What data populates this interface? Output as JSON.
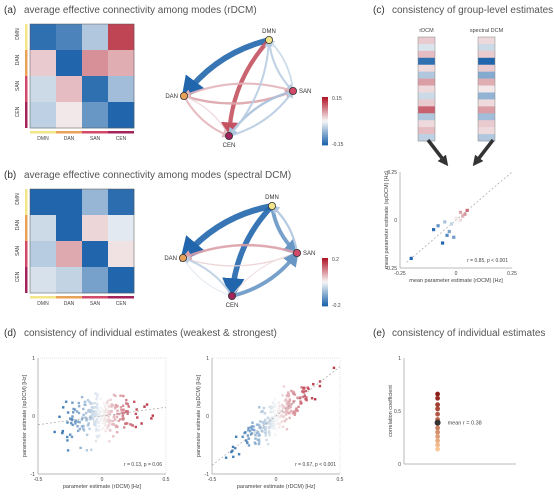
{
  "panels": {
    "a": {
      "letter": "(a)",
      "title": "average effective connectivity among modes (rDCM)"
    },
    "b": {
      "letter": "(b)",
      "title": "average effective connectivity among modes (spectral DCM)"
    },
    "c": {
      "letter": "(c)",
      "title": "consistency of group-level estimates"
    },
    "d": {
      "letter": "(d)",
      "title": "consistency of individual estimates (weakest & strongest)"
    },
    "e": {
      "letter": "(e)",
      "title": "consistency of individual estimates"
    }
  },
  "colors": {
    "red": "#b2182b",
    "blue": "#2166ac",
    "white": "#f7f7f7"
  },
  "chart_data": [
    {
      "id": "a_matrix",
      "type": "heatmap",
      "rows": [
        "DMN",
        "DAN",
        "SAN",
        "CEN"
      ],
      "cols": [
        "DMN",
        "DAN",
        "SAN",
        "CEN"
      ],
      "values": [
        [
          -0.14,
          -0.12,
          -0.05,
          0.12
        ],
        [
          0.03,
          -0.15,
          0.07,
          0.05
        ],
        [
          -0.03,
          0.04,
          -0.14,
          -0.06
        ],
        [
          -0.04,
          0.01,
          -0.1,
          -0.15
        ]
      ],
      "clim": [
        -0.15,
        0.15
      ]
    },
    {
      "id": "a_network",
      "type": "network",
      "nodes": [
        "DMN",
        "DAN",
        "SAN",
        "CEN"
      ],
      "edges": [
        {
          "from": "DMN",
          "to": "DAN",
          "weight": -0.14
        },
        {
          "from": "DMN",
          "to": "SAN",
          "weight": -0.04
        },
        {
          "from": "DMN",
          "to": "CEN",
          "weight": 0.1
        },
        {
          "from": "DAN",
          "to": "SAN",
          "weight": 0.05
        },
        {
          "from": "DAN",
          "to": "CEN",
          "weight": 0.04
        },
        {
          "from": "SAN",
          "to": "DAN",
          "weight": 0.04
        },
        {
          "from": "SAN",
          "to": "CEN",
          "weight": -0.05
        },
        {
          "from": "CEN",
          "to": "DAN",
          "weight": 0.02
        },
        {
          "from": "CEN",
          "to": "SAN",
          "weight": -0.04
        },
        {
          "from": "SAN",
          "to": "DMN",
          "weight": -0.03
        },
        {
          "from": "CEN",
          "to": "DMN",
          "weight": -0.04
        }
      ],
      "colorbar": {
        "range": [
          -0.15,
          0.15
        ],
        "ticks": [
          "0.15",
          "-0.15"
        ]
      }
    },
    {
      "id": "b_matrix",
      "type": "heatmap",
      "rows": [
        "DMN",
        "DAN",
        "SAN",
        "CEN"
      ],
      "cols": [
        "DMN",
        "DAN",
        "SAN",
        "CEN"
      ],
      "values": [
        [
          -0.2,
          -0.2,
          -0.09,
          -0.19
        ],
        [
          -0.04,
          -0.2,
          0.03,
          -0.02
        ],
        [
          -0.06,
          0.07,
          -0.2,
          0.02
        ],
        [
          -0.03,
          -0.05,
          -0.12,
          -0.2
        ]
      ],
      "clim": [
        -0.2,
        0.2
      ]
    },
    {
      "id": "b_network",
      "type": "network",
      "nodes": [
        "DMN",
        "DAN",
        "SAN",
        "CEN"
      ],
      "edges": [
        {
          "from": "DMN",
          "to": "DAN",
          "weight": -0.2
        },
        {
          "from": "DMN",
          "to": "SAN",
          "weight": -0.12
        },
        {
          "from": "DMN",
          "to": "CEN",
          "weight": -0.18
        },
        {
          "from": "DAN",
          "to": "SAN",
          "weight": 0.03
        },
        {
          "from": "DAN",
          "to": "CEN",
          "weight": -0.02
        },
        {
          "from": "SAN",
          "to": "DAN",
          "weight": 0.07
        },
        {
          "from": "SAN",
          "to": "CEN",
          "weight": 0.02
        },
        {
          "from": "CEN",
          "to": "SAN",
          "weight": -0.12
        },
        {
          "from": "CEN",
          "to": "DAN",
          "weight": -0.05
        },
        {
          "from": "SAN",
          "to": "DMN",
          "weight": -0.06
        }
      ],
      "colorbar": {
        "range": [
          -0.2,
          0.2
        ],
        "ticks": [
          "0.2",
          "-0.2"
        ]
      }
    },
    {
      "id": "c_columns",
      "type": "heatmap",
      "columns": [
        {
          "label": "rDCM",
          "values": [
            0.03,
            -0.02,
            0.04,
            -0.14,
            0.02,
            -0.05,
            0.06,
            0.02,
            -0.03,
            0.03,
            0.1,
            -0.05,
            0.02,
            0.04,
            -0.04
          ]
        },
        {
          "label": "spectral DCM",
          "values": [
            0.02,
            -0.03,
            0.03,
            -0.2,
            0.03,
            -0.08,
            0.05,
            0.01,
            -0.07,
            0.02,
            0.06,
            -0.06,
            0.03,
            0.02,
            -0.05
          ]
        }
      ]
    },
    {
      "id": "c_scatter",
      "type": "scatter",
      "xlabel": "mean parameter estimate (rDCM) [Hz]",
      "ylabel": "mean parameter estimate (spDCM) [Hz]",
      "xlim": [
        -0.25,
        0.25
      ],
      "ylim": [
        -0.25,
        0.25
      ],
      "xticks": [
        "-0.25",
        "0",
        "0.25"
      ],
      "yticks": [
        "0.25",
        "0",
        "-0.25"
      ],
      "points": [
        [
          -0.2,
          -0.2
        ],
        [
          -0.1,
          -0.05
        ],
        [
          -0.08,
          -0.03
        ],
        [
          -0.05,
          -0.01
        ],
        [
          -0.04,
          -0.08
        ],
        [
          -0.06,
          -0.12
        ],
        [
          -0.03,
          -0.06
        ],
        [
          -0.02,
          -0.02
        ],
        [
          0.0,
          0.01
        ],
        [
          0.01,
          -0.01
        ],
        [
          0.02,
          0.0
        ],
        [
          0.03,
          0.02
        ],
        [
          0.05,
          0.05
        ],
        [
          0.02,
          0.04
        ],
        [
          0.04,
          0.03
        ],
        [
          -0.01,
          -0.09
        ]
      ],
      "stat_text": "r = 0.85, p < 0.001"
    },
    {
      "id": "d_weakest",
      "type": "scatter",
      "xlabel": "parameter estimate (rDCM) [Hz]",
      "ylabel": "parameter estimate (spDCM) [Hz]",
      "xlim": [
        -0.5,
        0.5
      ],
      "ylim": [
        -1,
        1
      ],
      "xticks": [
        "-0.5",
        "0",
        "0.5"
      ],
      "yticks": [
        "1",
        "0",
        "-1"
      ],
      "stat_text": "r = 0.13, p = 0.06"
    },
    {
      "id": "d_strongest",
      "type": "scatter",
      "xlabel": "parameter estimate (rDCM) [Hz]",
      "ylabel": "parameter estimate (spDCM) [Hz]",
      "xlim": [
        -0.5,
        0.5
      ],
      "ylim": [
        -1,
        1
      ],
      "xticks": [
        "-0.5",
        "0",
        "0.5"
      ],
      "yticks": [
        "1",
        "0",
        "-1"
      ],
      "stat_text": "r = 0.67, p < 0.001"
    },
    {
      "id": "e_correlations",
      "type": "scatter",
      "ylabel": "correlation coefficient",
      "ylim": [
        0,
        1
      ],
      "yticks": [
        "1",
        "0.5",
        "0"
      ],
      "values": [
        0.66,
        0.62,
        0.56,
        0.52,
        0.47,
        0.42,
        0.38,
        0.34,
        0.3,
        0.26,
        0.22,
        0.18,
        0.14
      ],
      "mean_label": "mean r = 0.38"
    }
  ]
}
